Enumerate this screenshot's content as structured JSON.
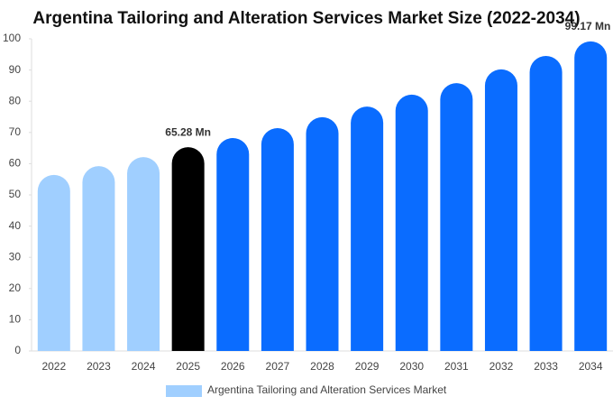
{
  "chart_data": {
    "type": "bar",
    "title": "Argentina Tailoring and Alteration Services Market Size (2022-2034)",
    "categories": [
      "2022",
      "2023",
      "2024",
      "2025",
      "2026",
      "2027",
      "2028",
      "2029",
      "2030",
      "2031",
      "2032",
      "2033",
      "2034"
    ],
    "series": [
      {
        "name": "Argentina Tailoring and Alteration Services Market",
        "color": "#a0cfff",
        "values": [
          56.4,
          59.2,
          62.1,
          65.28,
          68.2,
          71.4,
          74.9,
          78.3,
          82.1,
          85.8,
          90.2,
          94.5,
          99.17
        ],
        "value_labels": [
          null,
          null,
          null,
          "65.28 Mn",
          null,
          null,
          null,
          null,
          null,
          null,
          null,
          null,
          "99.17 Mn"
        ],
        "colors": [
          "#a0cfff",
          "#a0cfff",
          "#a0cfff",
          "#000000",
          "#0a6cff",
          "#0a6cff",
          "#0a6cff",
          "#0a6cff",
          "#0a6cff",
          "#0a6cff",
          "#0a6cff",
          "#0a6cff",
          "#0a6cff"
        ]
      }
    ],
    "ylim": [
      0,
      100
    ],
    "yticks": [
      0,
      10,
      20,
      30,
      40,
      50,
      60,
      70,
      80,
      90,
      100
    ],
    "grid": false
  }
}
